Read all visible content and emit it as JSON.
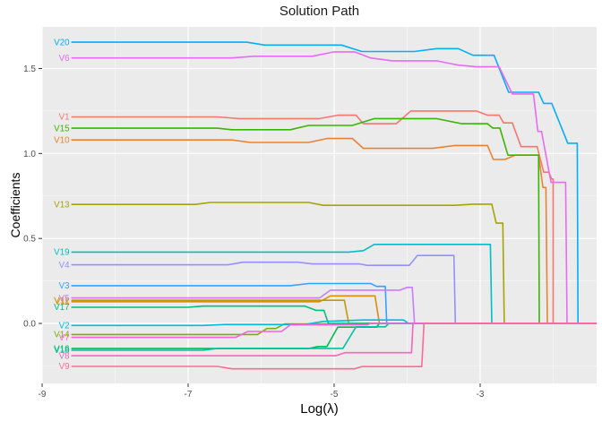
{
  "chart_data": {
    "type": "line",
    "title": "Solution Path",
    "xlabel": "Log(λ)",
    "ylabel": "Coefficients",
    "x_ticks": [
      -9,
      -7,
      -5,
      -3
    ],
    "x_tick_labels": [
      "-9",
      "-7",
      "-5",
      "-3"
    ],
    "x_minor_ticks": [
      -8,
      -6,
      -4,
      -2
    ],
    "y_ticks": [
      0.0,
      0.5,
      1.0,
      1.5
    ],
    "y_tick_labels": [
      "0.0",
      "0.5",
      "1.0",
      "1.5"
    ],
    "y_minor_ticks": [
      -0.25,
      0.25,
      0.75,
      1.25
    ],
    "xlim": [
      -9.0,
      -1.405
    ],
    "ylim": [
      -0.353,
      1.745
    ],
    "grid": true,
    "legend_position": "none",
    "label_style": "direct line-start labels",
    "panel_bg_color": "#EBEBEB",
    "grid_major_color": "#FFFFFF",
    "grid_minor_color": "#FFFFFF",
    "tick_label_color": "#4D4D4D",
    "tick_mark_color": "#333333",
    "title_color": "#1A1A1A",
    "series": [
      {
        "name": "V1",
        "color": "#F8766D",
        "points": [
          [
            -8.6,
            1.215
          ],
          [
            -6.6,
            1.215
          ],
          [
            -6.3,
            1.205
          ],
          [
            -5.2,
            1.205
          ],
          [
            -4.95,
            1.225
          ],
          [
            -4.7,
            1.225
          ],
          [
            -4.6,
            1.175
          ],
          [
            -4.15,
            1.175
          ],
          [
            -3.95,
            1.25
          ],
          [
            -3.05,
            1.25
          ],
          [
            -2.9,
            1.225
          ],
          [
            -2.74,
            1.225
          ],
          [
            -2.68,
            1.18
          ],
          [
            -2.56,
            1.18
          ],
          [
            -2.44,
            1.04
          ],
          [
            -2.22,
            1.04
          ],
          [
            -2.13,
            0.89
          ],
          [
            -2.06,
            0.89
          ],
          [
            -2.02,
            0.85
          ],
          [
            -2.0,
            0.85
          ],
          [
            -2.0,
            0.0
          ],
          [
            -1.405,
            0.0
          ]
        ]
      },
      {
        "name": "V10",
        "color": "#EA8331",
        "points": [
          [
            -8.6,
            1.08
          ],
          [
            -6.4,
            1.08
          ],
          [
            -6.15,
            1.065
          ],
          [
            -5.35,
            1.065
          ],
          [
            -5.1,
            1.088
          ],
          [
            -4.75,
            1.088
          ],
          [
            -4.6,
            1.03
          ],
          [
            -3.65,
            1.03
          ],
          [
            -3.35,
            1.047
          ],
          [
            -2.9,
            1.047
          ],
          [
            -2.82,
            0.965
          ],
          [
            -2.66,
            0.965
          ],
          [
            -2.52,
            0.99
          ],
          [
            -2.2,
            0.99
          ],
          [
            -2.14,
            0.8
          ],
          [
            -2.1,
            0.8
          ],
          [
            -2.08,
            0.0
          ],
          [
            -1.405,
            0.0
          ]
        ]
      },
      {
        "name": "V11",
        "color": "#D89000",
        "points": [
          [
            -8.6,
            0.128
          ],
          [
            -5.2,
            0.128
          ],
          [
            -5.05,
            0.162
          ],
          [
            -4.44,
            0.162
          ],
          [
            -4.38,
            0.0
          ],
          [
            -1.405,
            0.0
          ]
        ]
      },
      {
        "name": "V12",
        "color": "#C09B00",
        "points": [
          [
            -8.6,
            0.136
          ],
          [
            -4.86,
            0.136
          ],
          [
            -4.8,
            0.0
          ],
          [
            -1.405,
            0.0
          ]
        ]
      },
      {
        "name": "V13",
        "color": "#A3A500",
        "points": [
          [
            -8.6,
            0.7
          ],
          [
            -6.9,
            0.7
          ],
          [
            -6.7,
            0.712
          ],
          [
            -5.35,
            0.712
          ],
          [
            -5.15,
            0.695
          ],
          [
            -3.35,
            0.695
          ],
          [
            -3.1,
            0.702
          ],
          [
            -2.84,
            0.702
          ],
          [
            -2.78,
            0.59
          ],
          [
            -2.69,
            0.59
          ],
          [
            -2.67,
            0.0
          ],
          [
            -1.405,
            0.0
          ]
        ]
      },
      {
        "name": "V14",
        "color": "#7CAE00",
        "points": [
          [
            -8.6,
            -0.065
          ],
          [
            -6.05,
            -0.065
          ],
          [
            -5.92,
            -0.03
          ],
          [
            -5.8,
            -0.03
          ],
          [
            -5.68,
            -0.003
          ],
          [
            -4.6,
            -0.003
          ],
          [
            -4.55,
            0.0
          ],
          [
            -1.405,
            0.0
          ]
        ]
      },
      {
        "name": "V15",
        "color": "#39B600",
        "points": [
          [
            -8.6,
            1.149
          ],
          [
            -6.6,
            1.149
          ],
          [
            -6.4,
            1.14
          ],
          [
            -5.6,
            1.14
          ],
          [
            -5.35,
            1.165
          ],
          [
            -4.75,
            1.165
          ],
          [
            -4.45,
            1.205
          ],
          [
            -3.6,
            1.205
          ],
          [
            -3.25,
            1.175
          ],
          [
            -2.9,
            1.175
          ],
          [
            -2.83,
            1.15
          ],
          [
            -2.73,
            1.15
          ],
          [
            -2.62,
            0.99
          ],
          [
            -2.2,
            0.99
          ],
          [
            -2.19,
            0.0
          ],
          [
            -1.405,
            0.0
          ]
        ]
      },
      {
        "name": "V16",
        "color": "#00BB4E",
        "points": [
          [
            -8.6,
            -0.148
          ],
          [
            -5.35,
            -0.148
          ],
          [
            -5.22,
            -0.136
          ],
          [
            -5.1,
            -0.136
          ],
          [
            -4.95,
            -0.022
          ],
          [
            -4.42,
            -0.022
          ],
          [
            -4.38,
            0.0
          ],
          [
            -1.405,
            0.0
          ]
        ]
      },
      {
        "name": "V17",
        "color": "#00BF7D",
        "points": [
          [
            -8.6,
            0.095
          ],
          [
            -7.0,
            0.095
          ],
          [
            -6.8,
            0.102
          ],
          [
            -5.4,
            0.102
          ],
          [
            -5.25,
            0.077
          ],
          [
            -5.14,
            0.077
          ],
          [
            -5.08,
            0.0
          ],
          [
            -1.405,
            0.0
          ]
        ]
      },
      {
        "name": "V18",
        "color": "#00C1A3",
        "points": [
          [
            -8.6,
            -0.158
          ],
          [
            -6.8,
            -0.158
          ],
          [
            -6.6,
            -0.147
          ],
          [
            -4.88,
            -0.147
          ],
          [
            -4.7,
            -0.02
          ],
          [
            -4.3,
            -0.02
          ],
          [
            -4.25,
            0.0
          ],
          [
            -1.405,
            0.0
          ]
        ]
      },
      {
        "name": "V19",
        "color": "#00BFC4",
        "points": [
          [
            -8.6,
            0.42
          ],
          [
            -4.8,
            0.42
          ],
          [
            -4.6,
            0.428
          ],
          [
            -4.45,
            0.465
          ],
          [
            -2.86,
            0.465
          ],
          [
            -2.84,
            0.0
          ],
          [
            -1.405,
            0.0
          ]
        ]
      },
      {
        "name": "V2",
        "color": "#00BAE0",
        "points": [
          [
            -8.6,
            -0.012
          ],
          [
            -6.8,
            -0.012
          ],
          [
            -6.5,
            -0.006
          ],
          [
            -5.4,
            -0.006
          ],
          [
            -5.15,
            0.012
          ],
          [
            -4.6,
            0.02
          ],
          [
            -4.05,
            0.02
          ],
          [
            -3.98,
            0.0
          ],
          [
            -1.405,
            0.0
          ]
        ]
      },
      {
        "name": "V20",
        "color": "#00B0F6",
        "points": [
          [
            -8.6,
            1.655
          ],
          [
            -6.2,
            1.655
          ],
          [
            -5.95,
            1.638
          ],
          [
            -4.9,
            1.638
          ],
          [
            -4.62,
            1.6
          ],
          [
            -3.9,
            1.6
          ],
          [
            -3.6,
            1.617
          ],
          [
            -3.3,
            1.617
          ],
          [
            -3.1,
            1.578
          ],
          [
            -2.81,
            1.578
          ],
          [
            -2.61,
            1.36
          ],
          [
            -2.2,
            1.36
          ],
          [
            -2.13,
            1.295
          ],
          [
            -2.02,
            1.295
          ],
          [
            -1.8,
            1.06
          ],
          [
            -1.67,
            1.06
          ],
          [
            -1.66,
            0.0
          ],
          [
            -1.405,
            0.0
          ]
        ]
      },
      {
        "name": "V3",
        "color": "#35A2FF",
        "points": [
          [
            -8.6,
            0.222
          ],
          [
            -5.6,
            0.222
          ],
          [
            -5.35,
            0.235
          ],
          [
            -4.5,
            0.235
          ],
          [
            -4.42,
            0.218
          ],
          [
            -4.3,
            0.218
          ],
          [
            -4.28,
            0.0
          ],
          [
            -1.405,
            0.0
          ]
        ]
      },
      {
        "name": "V4",
        "color": "#9590FF",
        "points": [
          [
            -8.6,
            0.345
          ],
          [
            -6.45,
            0.345
          ],
          [
            -6.25,
            0.36
          ],
          [
            -5.5,
            0.36
          ],
          [
            -5.3,
            0.35
          ],
          [
            -4.65,
            0.35
          ],
          [
            -4.55,
            0.342
          ],
          [
            -3.97,
            0.342
          ],
          [
            -3.86,
            0.4
          ],
          [
            -3.36,
            0.4
          ],
          [
            -3.34,
            0.0
          ],
          [
            -1.405,
            0.0
          ]
        ]
      },
      {
        "name": "V5",
        "color": "#C77CFF",
        "points": [
          [
            -8.6,
            0.15
          ],
          [
            -5.2,
            0.15
          ],
          [
            -5.05,
            0.196
          ],
          [
            -4.1,
            0.196
          ],
          [
            -4.0,
            0.212
          ],
          [
            -3.93,
            0.212
          ],
          [
            -3.9,
            0.0
          ],
          [
            -1.405,
            0.0
          ]
        ]
      },
      {
        "name": "V6",
        "color": "#E76BF3",
        "points": [
          [
            -8.6,
            1.562
          ],
          [
            -6.4,
            1.562
          ],
          [
            -6.1,
            1.572
          ],
          [
            -5.3,
            1.572
          ],
          [
            -5.0,
            1.598
          ],
          [
            -4.72,
            1.598
          ],
          [
            -4.5,
            1.562
          ],
          [
            -4.2,
            1.545
          ],
          [
            -3.6,
            1.545
          ],
          [
            -3.3,
            1.52
          ],
          [
            -3.05,
            1.51
          ],
          [
            -2.74,
            1.51
          ],
          [
            -2.56,
            1.35
          ],
          [
            -2.27,
            1.35
          ],
          [
            -2.21,
            1.13
          ],
          [
            -2.16,
            1.13
          ],
          [
            -2.03,
            0.83
          ],
          [
            -1.83,
            0.83
          ],
          [
            -1.81,
            0.0
          ],
          [
            -1.405,
            0.0
          ]
        ]
      },
      {
        "name": "V7",
        "color": "#FA62DB",
        "points": [
          [
            -8.6,
            -0.082
          ],
          [
            -6.35,
            -0.082
          ],
          [
            -6.18,
            -0.047
          ],
          [
            -5.72,
            -0.047
          ],
          [
            -5.6,
            -0.008
          ],
          [
            -4.55,
            -0.008
          ],
          [
            -4.5,
            0.0
          ],
          [
            -1.405,
            0.0
          ]
        ]
      },
      {
        "name": "V8",
        "color": "#FF62BC",
        "points": [
          [
            -8.6,
            -0.19
          ],
          [
            -4.98,
            -0.19
          ],
          [
            -4.85,
            -0.172
          ],
          [
            -3.94,
            -0.172
          ],
          [
            -3.92,
            0.0
          ],
          [
            -1.405,
            0.0
          ]
        ]
      },
      {
        "name": "V9",
        "color": "#FF6A98",
        "points": [
          [
            -8.6,
            -0.253
          ],
          [
            -6.6,
            -0.253
          ],
          [
            -6.4,
            -0.267
          ],
          [
            -4.72,
            -0.267
          ],
          [
            -4.62,
            -0.254
          ],
          [
            -3.8,
            -0.254
          ],
          [
            -3.77,
            0.0
          ],
          [
            -1.405,
            0.0
          ]
        ]
      }
    ]
  }
}
